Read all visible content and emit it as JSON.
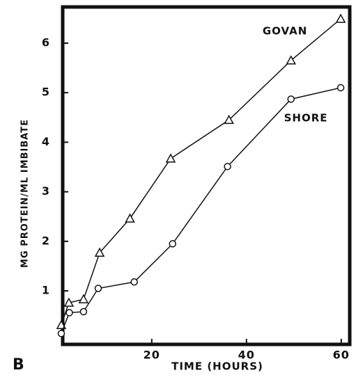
{
  "chart_data": {
    "type": "line",
    "panel_label": "B",
    "xlabel": "TIME (HOURS)",
    "ylabel": "MG PROTEIN/ML IMBIBATE",
    "xlim": [
      1.2,
      61.8
    ],
    "xticks": [
      20,
      40,
      60
    ],
    "ylim": [
      -0.08,
      6.73
    ],
    "yticks": [
      1,
      2,
      3,
      4,
      5,
      6
    ],
    "series": [
      {
        "name": "GOVAN",
        "color": "#111111",
        "marker": "triangle",
        "x": [
          0.9,
          2.5,
          5.6,
          9,
          15.4,
          24,
          36.3,
          49.4,
          59.9
        ],
        "values": [
          0.31,
          0.76,
          0.83,
          1.77,
          2.46,
          3.67,
          4.45,
          5.65,
          6.49
        ]
      },
      {
        "name": "SHORE",
        "color": "#111111",
        "marker": "circle",
        "x": [
          0.9,
          2.6,
          5.6,
          8.7,
          16.3,
          24.4,
          36,
          49.4,
          59.9
        ],
        "values": [
          0.14,
          0.56,
          0.58,
          1.05,
          1.18,
          1.95,
          3.51,
          4.87,
          5.1
        ]
      }
    ]
  }
}
